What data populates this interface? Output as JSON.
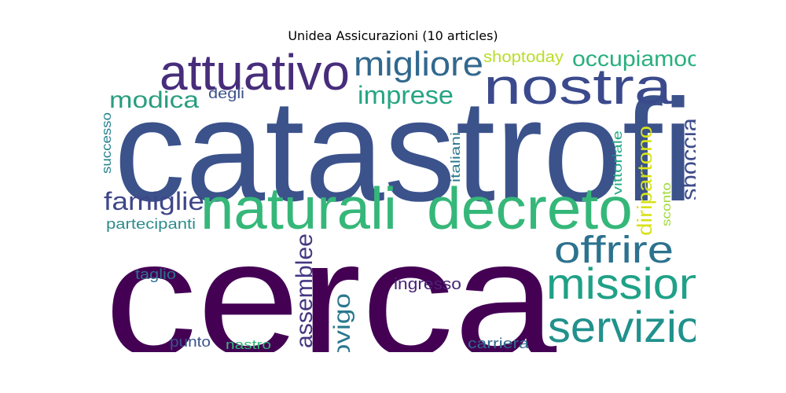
{
  "chart_data": {
    "type": "wordcloud",
    "title": "Unidea Assicurazioni (10 articles)",
    "words": [
      {
        "text": "cerca",
        "color": "#440154"
      },
      {
        "text": "catastrofi",
        "color": "#3b528b"
      },
      {
        "text": "naturali",
        "color": "#35b779"
      },
      {
        "text": "decreto",
        "color": "#35b779"
      },
      {
        "text": "attuativo",
        "color": "#472d7b"
      },
      {
        "text": "nostra",
        "color": "#3b4a8c"
      },
      {
        "text": "migliore",
        "color": "#31688e"
      },
      {
        "text": "mission",
        "color": "#1fa187"
      },
      {
        "text": "servizio",
        "color": "#21918c"
      },
      {
        "text": "offrire",
        "color": "#2c728e"
      },
      {
        "text": "imprese",
        "color": "#26a584"
      },
      {
        "text": "famiglie",
        "color": "#3f4788"
      },
      {
        "text": "modica",
        "color": "#2a9d7f"
      },
      {
        "text": "occupiamoci",
        "color": "#29af7f"
      },
      {
        "text": "rovigo",
        "color": "#2a788e"
      },
      {
        "text": "assemblee",
        "color": "#453781"
      },
      {
        "text": "sboccia",
        "color": "#3e4c8a"
      },
      {
        "text": "diripartono",
        "color": "#d8e219"
      },
      {
        "text": "shoptoday",
        "color": "#b8de29"
      },
      {
        "text": "ingresso",
        "color": "#482475"
      },
      {
        "text": "partecipanti",
        "color": "#2e8b8c"
      },
      {
        "text": "taglio",
        "color": "#2d708e"
      },
      {
        "text": "successo",
        "color": "#26828e"
      },
      {
        "text": "italiani",
        "color": "#2a788e"
      },
      {
        "text": "vittoriale",
        "color": "#22a884"
      },
      {
        "text": "sconto",
        "color": "#a0da39"
      },
      {
        "text": "degli",
        "color": "#3b528b"
      },
      {
        "text": "carriera",
        "color": "#31688e"
      },
      {
        "text": "punto",
        "color": "#3b528b"
      },
      {
        "text": "nastro",
        "color": "#35b779"
      }
    ]
  }
}
